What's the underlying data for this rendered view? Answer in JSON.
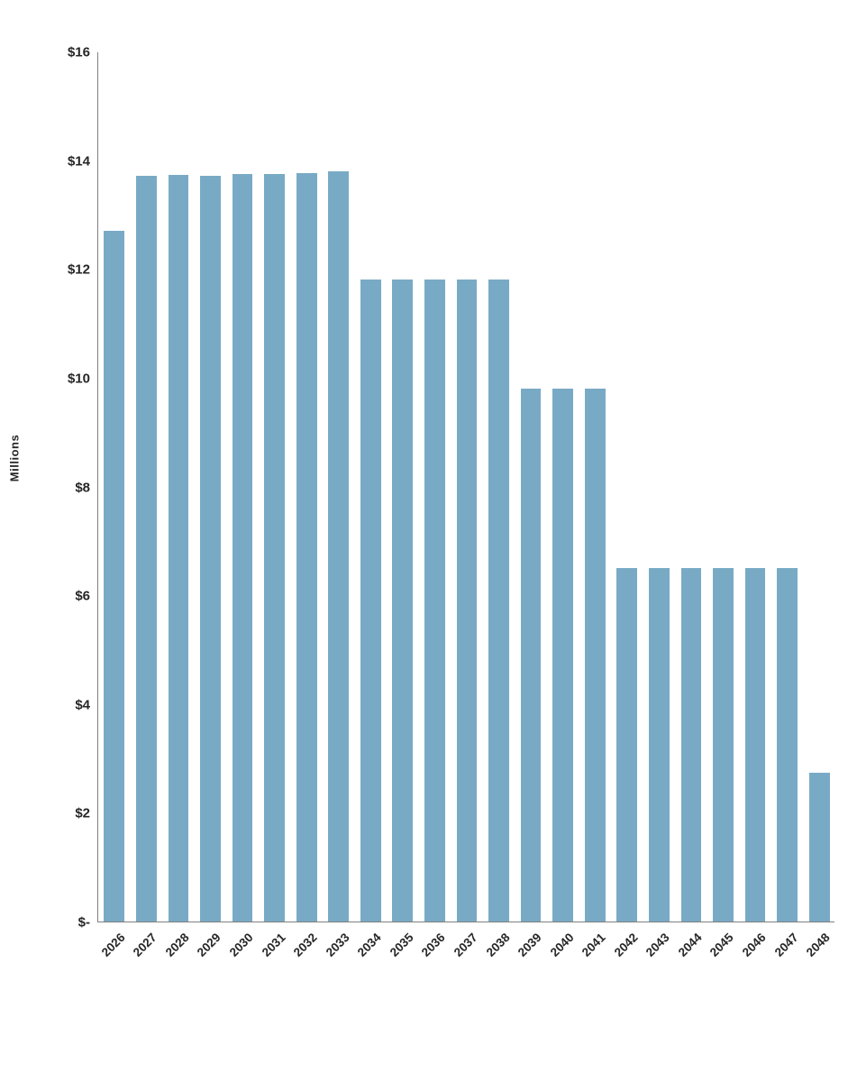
{
  "chart_data": {
    "type": "bar",
    "title": "",
    "xlabel": "",
    "ylabel": "Millions",
    "ylim": [
      0,
      16
    ],
    "grid": false,
    "legend": "none",
    "yticks": [
      {
        "value": 0,
        "label": "$-"
      },
      {
        "value": 2,
        "label": "$2"
      },
      {
        "value": 4,
        "label": "$4"
      },
      {
        "value": 6,
        "label": "$6"
      },
      {
        "value": 8,
        "label": "$8"
      },
      {
        "value": 10,
        "label": "$10"
      },
      {
        "value": 12,
        "label": "$12"
      },
      {
        "value": 14,
        "label": "$14"
      },
      {
        "value": 16,
        "label": "$16"
      }
    ],
    "categories": [
      "2026",
      "2027",
      "2028",
      "2029",
      "2030",
      "2031",
      "2032",
      "2033",
      "2034",
      "2035",
      "2036",
      "2037",
      "2038",
      "2039",
      "2040",
      "2041",
      "2042",
      "2043",
      "2044",
      "2045",
      "2046",
      "2047",
      "2048"
    ],
    "values": [
      12.7,
      13.72,
      13.73,
      13.72,
      13.75,
      13.75,
      13.77,
      13.79,
      11.8,
      11.8,
      11.8,
      11.8,
      11.8,
      9.8,
      9.8,
      9.8,
      6.5,
      6.5,
      6.5,
      6.5,
      6.5,
      6.5,
      2.74
    ],
    "colors": {
      "bar": "#79AAC5",
      "axis": "#808080",
      "text": "#262626",
      "background": "#ffffff"
    }
  }
}
